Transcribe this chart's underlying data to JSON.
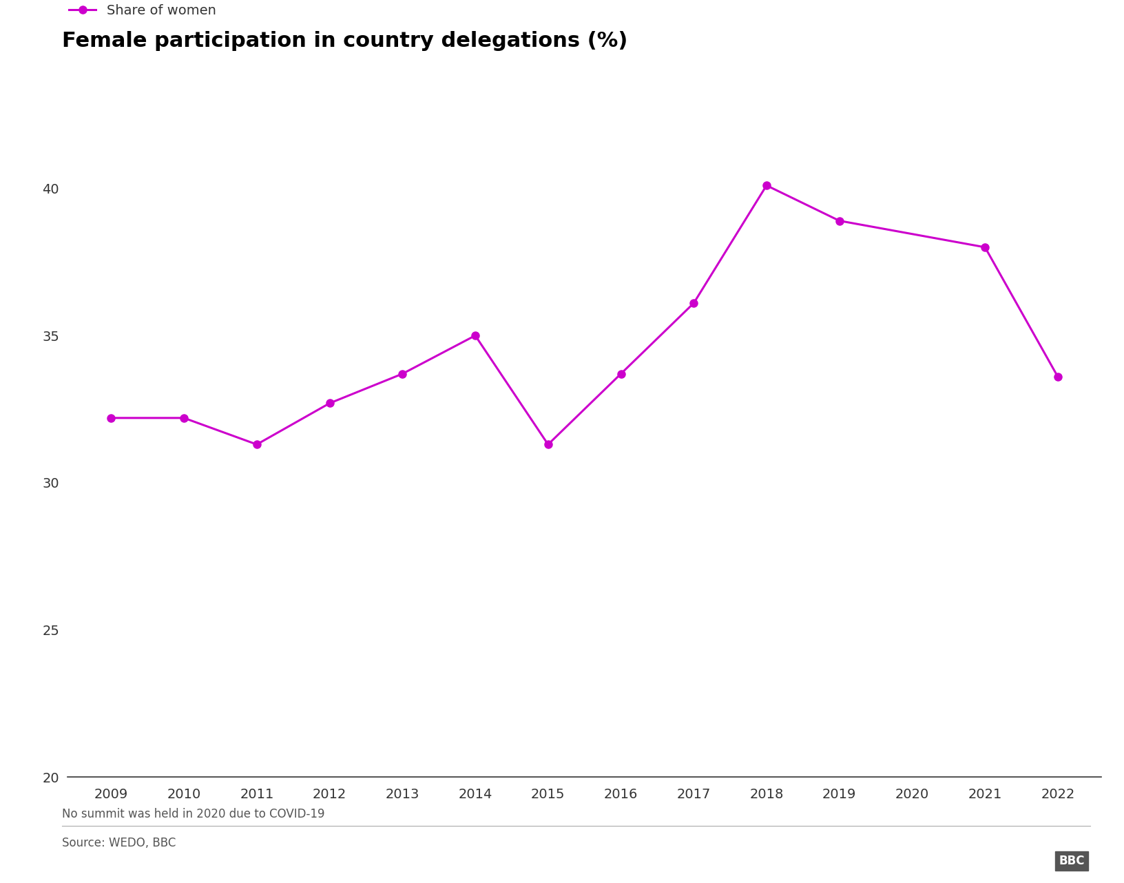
{
  "title": "Female participation in country delegations (%)",
  "legend_label": "Share of women",
  "years": [
    2009,
    2010,
    2011,
    2012,
    2013,
    2014,
    2015,
    2016,
    2017,
    2018,
    2019,
    2021,
    2022
  ],
  "values": [
    32.2,
    32.2,
    31.3,
    32.7,
    33.7,
    35.0,
    31.3,
    33.7,
    36.1,
    40.1,
    38.9,
    38.0,
    33.6
  ],
  "line_color": "#cc00cc",
  "marker": "o",
  "marker_size": 8,
  "line_width": 2.2,
  "ylim": [
    20,
    41
  ],
  "yticks": [
    20,
    25,
    30,
    35,
    40
  ],
  "all_years": [
    2009,
    2010,
    2011,
    2012,
    2013,
    2014,
    2015,
    2016,
    2017,
    2018,
    2019,
    2020,
    2021,
    2022
  ],
  "footnote": "No summit was held in 2020 due to COVID-19",
  "source": "Source: WEDO, BBC",
  "background_color": "#ffffff",
  "title_fontsize": 22,
  "legend_fontsize": 14,
  "tick_fontsize": 14,
  "footnote_fontsize": 12,
  "source_fontsize": 12
}
